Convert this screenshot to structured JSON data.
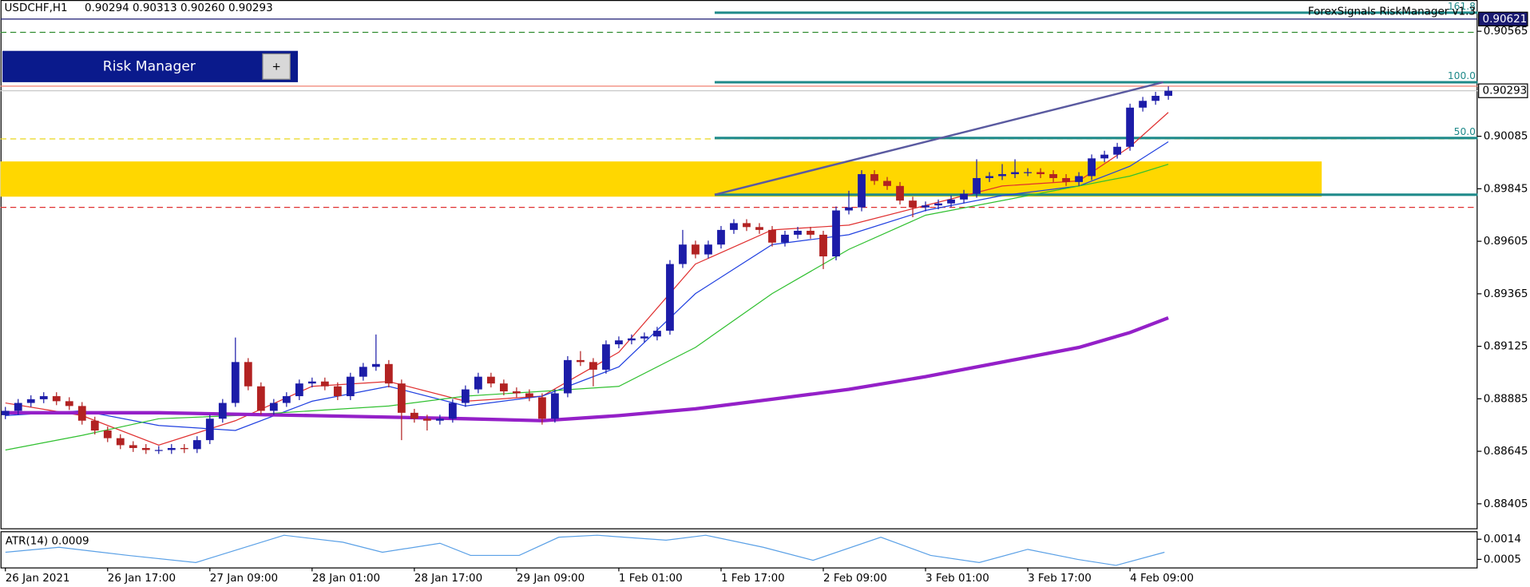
{
  "chart_data": {
    "type": "candlestick",
    "symbol": "USDCHF,H1",
    "quote": "0.90294 0.90313 0.90260 0.90293",
    "indicator_label": "ForexSignals RiskManager v1.3",
    "xlim": [
      -0.38,
      115.2
    ],
    "xticks": [
      {
        "value": 0,
        "label": "26 Jan 2021"
      },
      {
        "value": 8,
        "label": "26 Jan 17:00"
      },
      {
        "value": 16,
        "label": "27 Jan 09:00"
      },
      {
        "value": 24,
        "label": "28 Jan 01:00"
      },
      {
        "value": 32,
        "label": "28 Jan 17:00"
      },
      {
        "value": 40,
        "label": "29 Jan 09:00"
      },
      {
        "value": 48,
        "label": "1 Feb 01:00"
      },
      {
        "value": 56,
        "label": "1 Feb 17:00"
      },
      {
        "value": 64,
        "label": "2 Feb 09:00"
      },
      {
        "value": 72,
        "label": "3 Feb 01:00"
      },
      {
        "value": 80,
        "label": "3 Feb 17:00"
      },
      {
        "value": 88,
        "label": "4 Feb 09:00"
      }
    ],
    "ylim": [
      0.88293,
      0.90708
    ],
    "yticks": [
      0.90565,
      0.90085,
      0.89845,
      0.89605,
      0.89365,
      0.89125,
      0.88885,
      0.88645,
      0.88405
    ],
    "up_color": "#1c1ca8",
    "down_color": "#b22222",
    "open": [
      0.8881,
      0.8883,
      0.88866,
      0.88883,
      0.88897,
      0.88874,
      0.88852,
      0.88785,
      0.8874,
      0.88705,
      0.88673,
      0.8866,
      0.88651,
      0.88651,
      0.8866,
      0.88655,
      0.88696,
      0.88794,
      0.88866,
      0.89053,
      0.88942,
      0.8883,
      0.88866,
      0.88897,
      0.88955,
      0.88964,
      0.88942,
      0.88897,
      0.88986,
      0.89031,
      0.89044,
      0.88955,
      0.88821,
      0.88794,
      0.88785,
      0.88794,
      0.88866,
      0.88928,
      0.88986,
      0.88955,
      0.88919,
      0.8891,
      0.88892,
      0.88794,
      0.8891,
      0.89062,
      0.89053,
      0.89018,
      0.89134,
      0.89152,
      0.89161,
      0.8917,
      0.89196,
      0.89501,
      0.8959,
      0.89545,
      0.8959,
      0.89657,
      0.89688,
      0.8967,
      0.89657,
      0.89599,
      0.89635,
      0.89653,
      0.89635,
      0.89536,
      0.89746,
      0.8976,
      0.89912,
      0.89881,
      0.89858,
      0.89791,
      0.8976,
      0.89769,
      0.89778,
      0.89796,
      0.89822,
      0.89894,
      0.89903,
      0.89912,
      0.89921,
      0.89921,
      0.89912,
      0.89894,
      0.89876,
      0.89903,
      0.89984,
      0.90001,
      0.90037,
      0.90216,
      0.90247,
      0.9027
    ],
    "high": [
      0.88848,
      0.88884,
      0.88901,
      0.88915,
      0.88915,
      0.88892,
      0.8887,
      0.88803,
      0.88758,
      0.88723,
      0.88691,
      0.88678,
      0.88669,
      0.88678,
      0.88678,
      0.88714,
      0.88812,
      0.88884,
      0.89165,
      0.89071,
      0.8896,
      0.88884,
      0.88915,
      0.88973,
      0.88982,
      0.88982,
      0.8896,
      0.89004,
      0.89049,
      0.89179,
      0.89062,
      0.88973,
      0.88839,
      0.88812,
      0.88812,
      0.88884,
      0.88946,
      0.89004,
      0.89004,
      0.88973,
      0.88937,
      0.88928,
      0.8891,
      0.88928,
      0.8908,
      0.89103,
      0.89071,
      0.89152,
      0.8917,
      0.89179,
      0.89188,
      0.89214,
      0.89519,
      0.89657,
      0.89608,
      0.89608,
      0.89675,
      0.89706,
      0.89706,
      0.89688,
      0.89675,
      0.89653,
      0.89671,
      0.89671,
      0.89653,
      0.89764,
      0.89836,
      0.8993,
      0.8993,
      0.89899,
      0.89876,
      0.89809,
      0.89787,
      0.89796,
      0.89814,
      0.8984,
      0.8998,
      0.89921,
      0.89958,
      0.8998,
      0.89939,
      0.89939,
      0.8993,
      0.89912,
      0.89921,
      0.90002,
      0.90019,
      0.90055,
      0.90234,
      0.90265,
      0.90288,
      0.90313
    ],
    "low": [
      0.88792,
      0.88812,
      0.88848,
      0.88865,
      0.88856,
      0.88834,
      0.88767,
      0.88722,
      0.88687,
      0.88655,
      0.88642,
      0.88633,
      0.88633,
      0.88633,
      0.88637,
      0.88637,
      0.88678,
      0.88776,
      0.88848,
      0.88924,
      0.88812,
      0.88812,
      0.88848,
      0.88879,
      0.88937,
      0.88924,
      0.88879,
      0.88879,
      0.88968,
      0.89013,
      0.88937,
      0.88696,
      0.88776,
      0.8874,
      0.88767,
      0.88776,
      0.88848,
      0.8891,
      0.88937,
      0.88901,
      0.88892,
      0.88874,
      0.88767,
      0.88776,
      0.88892,
      0.89035,
      0.88942,
      0.89,
      0.89116,
      0.89134,
      0.89143,
      0.89152,
      0.89178,
      0.89483,
      0.89527,
      0.89527,
      0.89572,
      0.89639,
      0.89652,
      0.89639,
      0.89581,
      0.89581,
      0.89617,
      0.89617,
      0.89478,
      0.89518,
      0.89728,
      0.89742,
      0.89863,
      0.8984,
      0.89773,
      0.89715,
      0.89742,
      0.89751,
      0.8976,
      0.89778,
      0.89804,
      0.89876,
      0.89885,
      0.89894,
      0.89903,
      0.89894,
      0.89876,
      0.89858,
      0.89858,
      0.89885,
      0.89966,
      0.89983,
      0.90019,
      0.90198,
      0.90229,
      0.90252
    ],
    "close": [
      0.8883,
      0.88866,
      0.88883,
      0.88897,
      0.88874,
      0.88852,
      0.88785,
      0.8874,
      0.88705,
      0.88673,
      0.8866,
      0.88651,
      0.88651,
      0.8866,
      0.88655,
      0.88696,
      0.88794,
      0.88866,
      0.89053,
      0.88942,
      0.8883,
      0.88866,
      0.88897,
      0.88955,
      0.88964,
      0.88942,
      0.88897,
      0.88986,
      0.89031,
      0.89044,
      0.88955,
      0.88821,
      0.88794,
      0.88785,
      0.88794,
      0.88866,
      0.88928,
      0.88986,
      0.88955,
      0.88919,
      0.8891,
      0.88892,
      0.88794,
      0.8891,
      0.89062,
      0.89053,
      0.89018,
      0.89134,
      0.89152,
      0.89161,
      0.8917,
      0.89196,
      0.89501,
      0.8959,
      0.89545,
      0.8959,
      0.89657,
      0.89688,
      0.8967,
      0.89657,
      0.89599,
      0.89635,
      0.89653,
      0.89635,
      0.89536,
      0.89746,
      0.8976,
      0.89912,
      0.89881,
      0.89858,
      0.89791,
      0.8976,
      0.89769,
      0.89778,
      0.89796,
      0.89822,
      0.89894,
      0.89903,
      0.89912,
      0.89921,
      0.89921,
      0.89912,
      0.89894,
      0.89876,
      0.89903,
      0.89984,
      0.90001,
      0.90037,
      0.90216,
      0.90247,
      0.9027,
      0.90293
    ],
    "series": [
      {
        "color": "#e03030",
        "width": 1,
        "x": [
          0,
          6,
          12,
          18,
          24,
          30,
          36,
          42,
          48,
          54,
          60,
          66,
          72,
          78,
          84,
          88,
          91
        ],
        "values": [
          0.88866,
          0.88808,
          0.88673,
          0.88785,
          0.88942,
          0.88964,
          0.88874,
          0.88897,
          0.89098,
          0.89501,
          0.89657,
          0.89679,
          0.89769,
          0.89858,
          0.89881,
          0.90037,
          0.90194
        ]
      },
      {
        "color": "#2040e0",
        "width": 1,
        "x": [
          0,
          6,
          12,
          18,
          24,
          30,
          36,
          42,
          48,
          54,
          60,
          66,
          72,
          78,
          84,
          88,
          91
        ],
        "values": [
          0.88808,
          0.8883,
          0.88763,
          0.8874,
          0.88874,
          0.88942,
          0.88852,
          0.88897,
          0.89031,
          0.89366,
          0.8959,
          0.89635,
          0.89746,
          0.89814,
          0.89858,
          0.89948,
          0.9006
        ]
      },
      {
        "color": "#30c030",
        "width": 1,
        "x": [
          0,
          6,
          12,
          18,
          24,
          30,
          36,
          42,
          48,
          54,
          60,
          66,
          72,
          78,
          84,
          88,
          91
        ],
        "values": [
          0.88651,
          0.88718,
          0.88794,
          0.88808,
          0.8883,
          0.88852,
          0.88897,
          0.88919,
          0.88942,
          0.8912,
          0.89366,
          0.89568,
          0.89724,
          0.89791,
          0.89858,
          0.89903,
          0.89957
        ]
      },
      {
        "color": "#9420c8",
        "width": 3.5,
        "x": [
          0,
          12,
          24,
          36,
          42,
          48,
          54,
          60,
          66,
          72,
          78,
          84,
          88,
          91
        ],
        "values": [
          0.88821,
          0.88821,
          0.88808,
          0.88794,
          0.88785,
          0.88808,
          0.88839,
          0.88883,
          0.88928,
          0.88986,
          0.89053,
          0.8912,
          0.89188,
          0.89255
        ]
      }
    ],
    "levels": [
      {
        "value": 0.90621,
        "color": "#191970",
        "style": "solid"
      },
      {
        "value": 0.9056,
        "color": "#2e8b2e",
        "style": "dashed"
      },
      {
        "value": 0.90314,
        "color": "#f08070",
        "style": "solid"
      },
      {
        "value": 0.90293,
        "color": "#c8c8c8",
        "style": "solid"
      },
      {
        "value": 0.90073,
        "color": "#e6d200",
        "style": "dashed"
      },
      {
        "value": 0.8976,
        "color": "#e03030",
        "style": "dashed"
      }
    ],
    "price_labels": [
      {
        "value": 0.90621,
        "fill": "#191970",
        "text": "#ffffff"
      },
      {
        "value": 0.90293,
        "fill": "#ffffff",
        "text": "#000000"
      }
    ],
    "zone": {
      "from": 0.89809,
      "to": 0.8997,
      "x": [
        -0.38,
        103
      ],
      "color": "#ffd700"
    },
    "fib": {
      "color": "#1f8a8a",
      "x": [
        55.5,
        115.2
      ],
      "levels": [
        {
          "value": 0.9065,
          "label": "161.8"
        },
        {
          "value": 0.90332,
          "label": "100.0"
        },
        {
          "value": 0.90077,
          "label": "50.0"
        },
        {
          "value": 0.89818,
          "label": null
        }
      ]
    },
    "trendline": {
      "color": "#5a5aa0",
      "x": [
        55.5,
        90.6
      ],
      "values": [
        0.89818,
        0.90332
      ]
    },
    "atr": {
      "label": "ATR(14) 0.0009",
      "color": "#5aa0e6",
      "ylim": [
        0.00014,
        0.001715
      ],
      "yticks": [
        0.0014,
        0.0005
      ],
      "x": [
        0,
        4.2,
        9.6,
        14.9,
        21.8,
        26.4,
        29.5,
        34,
        36.4,
        40.2,
        43.3,
        46.3,
        51.7,
        54.8,
        59.3,
        63.2,
        68.5,
        72.4,
        76.2,
        80,
        83.9,
        86.9,
        90.7
      ],
      "values": [
        0.00082,
        0.00104,
        0.00068,
        0.00036,
        0.00158,
        0.00127,
        0.00082,
        0.00122,
        0.00068,
        0.00068,
        0.00149,
        0.00158,
        0.00136,
        0.00158,
        0.00104,
        0.00046,
        0.00149,
        0.00068,
        0.00036,
        0.00095,
        0.0005,
        0.00023,
        0.00082
      ]
    }
  },
  "ui": {
    "button": "Risk Manager",
    "plus": "+"
  }
}
